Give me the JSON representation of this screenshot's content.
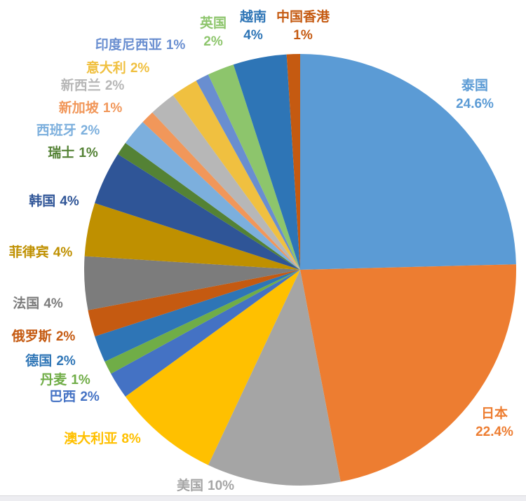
{
  "page": {
    "background": "#FFFFFF",
    "title": ""
  },
  "chart_data": {
    "type": "pie",
    "title": "",
    "legend_position": "none",
    "start_angle_deg": 0,
    "direction": "clockwise",
    "data_label_format": "category name + percent, outside slices",
    "total_percent": 100,
    "slices": [
      {
        "id": "thailand",
        "name": "泰国",
        "value": 24.6,
        "percent_label": "24.6%",
        "color": "#5B9BD5"
      },
      {
        "id": "japan",
        "name": "日本",
        "value": 22.4,
        "percent_label": "22.4%",
        "color": "#ED7D31"
      },
      {
        "id": "usa",
        "name": "美国",
        "value": 10,
        "percent_label": "10%",
        "color": "#A5A5A5"
      },
      {
        "id": "australia",
        "name": "澳大利亚",
        "value": 8,
        "percent_label": "8%",
        "color": "#FFC000"
      },
      {
        "id": "brazil",
        "name": "巴西",
        "value": 2,
        "percent_label": "2%",
        "color": "#4472C4"
      },
      {
        "id": "denmark",
        "name": "丹麦",
        "value": 1,
        "percent_label": "1%",
        "color": "#70AD47"
      },
      {
        "id": "germany",
        "name": "德国",
        "value": 2,
        "percent_label": "2%",
        "color": "#2E75B6"
      },
      {
        "id": "russia",
        "name": "俄罗斯",
        "value": 2,
        "percent_label": "2%",
        "color": "#C55A11"
      },
      {
        "id": "france",
        "name": "法国",
        "value": 4,
        "percent_label": "4%",
        "color": "#7C7C7C"
      },
      {
        "id": "philippines",
        "name": "菲律宾",
        "value": 4,
        "percent_label": "4%",
        "color": "#BF9000"
      },
      {
        "id": "south-korea",
        "name": "韩国",
        "value": 4,
        "percent_label": "4%",
        "color": "#2F5597"
      },
      {
        "id": "switzerland",
        "name": "瑞士",
        "value": 1,
        "percent_label": "1%",
        "color": "#548235"
      },
      {
        "id": "spain",
        "name": "西班牙",
        "value": 2,
        "percent_label": "2%",
        "color": "#7CAFDD"
      },
      {
        "id": "singapore",
        "name": "新加坡",
        "value": 1,
        "percent_label": "1%",
        "color": "#F1975A"
      },
      {
        "id": "new-zealand",
        "name": "新西兰",
        "value": 2,
        "percent_label": "2%",
        "color": "#B7B7B7"
      },
      {
        "id": "italy",
        "name": "意大利",
        "value": 2,
        "percent_label": "2%",
        "color": "#F0C040"
      },
      {
        "id": "indonesia",
        "name": "印度尼西亚",
        "value": 1,
        "percent_label": "1%",
        "color": "#698ED0"
      },
      {
        "id": "uk",
        "name": "英国",
        "value": 2,
        "percent_label": "2%",
        "color": "#8DC56C"
      },
      {
        "id": "vietnam",
        "name": "越南",
        "value": 4,
        "percent_label": "4%",
        "color": "#2E75B6"
      },
      {
        "id": "hong-kong",
        "name": "中国香港",
        "value": 1,
        "percent_label": "1%",
        "color": "#C55A11"
      }
    ]
  }
}
